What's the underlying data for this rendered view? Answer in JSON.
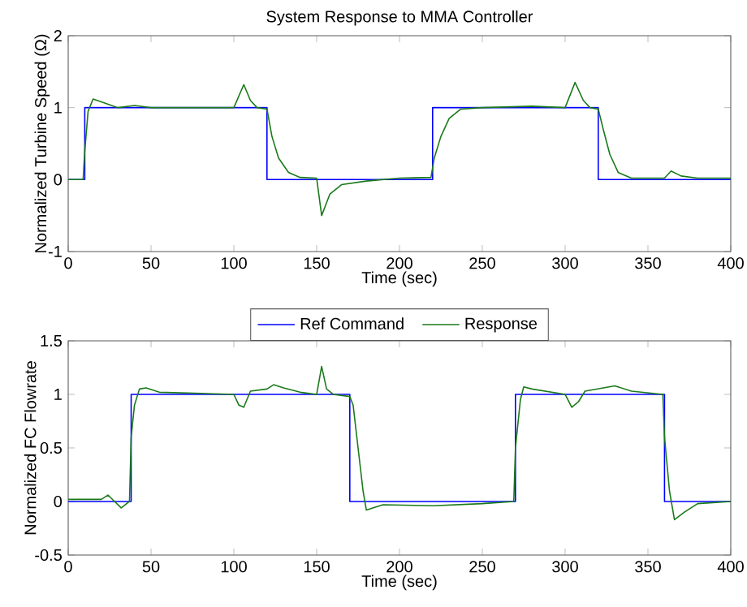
{
  "chart_data": [
    {
      "type": "line",
      "title": "System Response to MMA Controller",
      "xlabel": "Time (sec)",
      "ylabel": "Normalized Turbine Speed (Ω)",
      "xlim": [
        0,
        400
      ],
      "xticks": [
        0,
        50,
        100,
        150,
        200,
        250,
        300,
        350,
        400
      ],
      "ylim": [
        -1,
        2
      ],
      "yticks": [
        -1,
        0,
        1,
        2
      ],
      "legend": false,
      "series": [
        {
          "type": "step",
          "color": "#0000ff",
          "x": [
            0,
            10,
            120,
            220,
            320,
            400
          ],
          "values": [
            0,
            1,
            0,
            1,
            0,
            0
          ]
        },
        {
          "type": "line",
          "color": "#1a7a1a",
          "x": [
            0,
            9,
            10,
            12,
            15,
            20,
            30,
            40,
            50,
            100,
            106,
            110,
            114,
            120,
            123,
            127,
            133,
            140,
            150,
            153,
            158,
            165,
            180,
            200,
            219,
            221,
            225,
            230,
            237,
            250,
            280,
            300,
            306,
            311,
            315,
            320,
            323,
            327,
            332,
            340,
            360,
            364,
            370,
            380,
            400
          ],
          "values": [
            0,
            0,
            0.4,
            0.95,
            1.12,
            1.08,
            1.0,
            1.03,
            1.0,
            1.0,
            1.32,
            1.1,
            1.0,
            0.98,
            0.6,
            0.3,
            0.1,
            0.03,
            0.02,
            -0.5,
            -0.2,
            -0.07,
            -0.02,
            0.02,
            0.03,
            0.3,
            0.6,
            0.85,
            0.98,
            1.0,
            1.02,
            1.0,
            1.35,
            1.1,
            1.0,
            0.98,
            0.7,
            0.35,
            0.1,
            0.02,
            0.02,
            0.12,
            0.05,
            0.02,
            0.02
          ]
        }
      ]
    },
    {
      "type": "line",
      "xlabel": "Time (sec)",
      "ylabel": "Normalized FC Flowrate",
      "xlim": [
        0,
        400
      ],
      "xticks": [
        0,
        50,
        100,
        150,
        200,
        250,
        300,
        350,
        400
      ],
      "ylim": [
        -0.5,
        1.5
      ],
      "yticks": [
        -0.5,
        0,
        0.5,
        1,
        1.5
      ],
      "legend": "top",
      "series": [
        {
          "type": "step",
          "name": "Ref Command",
          "color": "#0000ff",
          "x": [
            0,
            38,
            170,
            270,
            360,
            400
          ],
          "values": [
            0,
            1,
            0,
            1,
            0,
            0
          ]
        },
        {
          "type": "line",
          "name": "Response",
          "color": "#1a7a1a",
          "x": [
            0,
            20,
            24,
            28,
            32,
            37,
            38,
            40,
            43,
            47,
            55,
            100,
            103,
            106,
            110,
            120,
            124,
            130,
            140,
            150,
            153,
            156,
            160,
            170,
            172,
            175,
            178,
            180,
            190,
            220,
            250,
            269,
            270,
            273,
            275,
            280,
            300,
            304,
            308,
            312,
            330,
            340,
            359,
            360,
            363,
            366,
            372,
            380,
            400
          ],
          "values": [
            0.02,
            0.02,
            0.06,
            0,
            -0.06,
            0,
            0.6,
            0.9,
            1.05,
            1.06,
            1.02,
            1.0,
            0.9,
            0.88,
            1.03,
            1.05,
            1.09,
            1.06,
            1.02,
            1.0,
            1.26,
            1.05,
            1.0,
            0.98,
            0.9,
            0.5,
            0.1,
            -0.08,
            -0.03,
            -0.04,
            -0.02,
            0,
            0.5,
            0.95,
            1.07,
            1.05,
            1.0,
            0.88,
            0.93,
            1.03,
            1.08,
            1.03,
            1.0,
            0.6,
            0.1,
            -0.17,
            -0.1,
            -0.02,
            0
          ]
        }
      ]
    }
  ]
}
